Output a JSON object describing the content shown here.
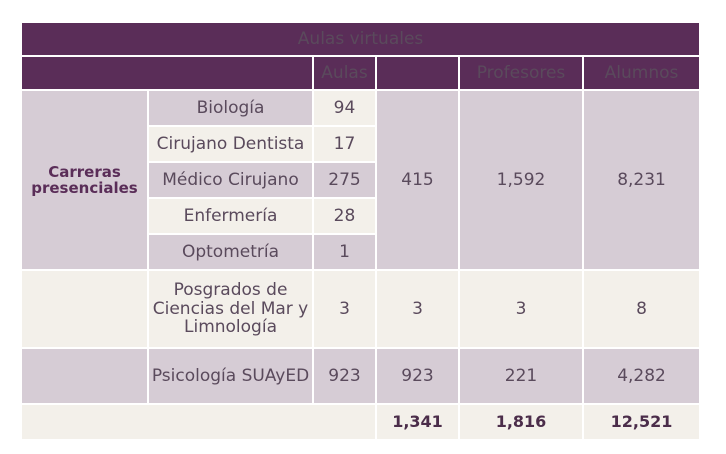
{
  "title": "Aulas virtuales",
  "headers": {
    "aulas": "Aulas",
    "profesores": "Profesores",
    "alumnos": "Alumnos"
  },
  "carreras": {
    "label": "Carreras presenciales",
    "items": [
      {
        "name": "Biología",
        "aulas": "94"
      },
      {
        "name": "Cirujano Dentista",
        "aulas": "17"
      },
      {
        "name": "Médico Cirujano",
        "aulas": "275"
      },
      {
        "name": "Enfermería",
        "aulas": "28"
      },
      {
        "name": "Optometría",
        "aulas": "1"
      }
    ],
    "total_aulas": "415",
    "profesores": "1,592",
    "alumnos": "8,231"
  },
  "posgrados": {
    "name": "Posgrados de Ciencias del Mar y Limnología",
    "aulas": "3",
    "total_aulas": "3",
    "profesores": "3",
    "alumnos": "8"
  },
  "psicologia": {
    "name": "Psicología SUAyED",
    "aulas": "923",
    "total_aulas": "923",
    "profesores": "221",
    "alumnos": "4,282"
  },
  "totals": {
    "aulas": "1,341",
    "profesores": "1,816",
    "alumnos": "12,521"
  }
}
